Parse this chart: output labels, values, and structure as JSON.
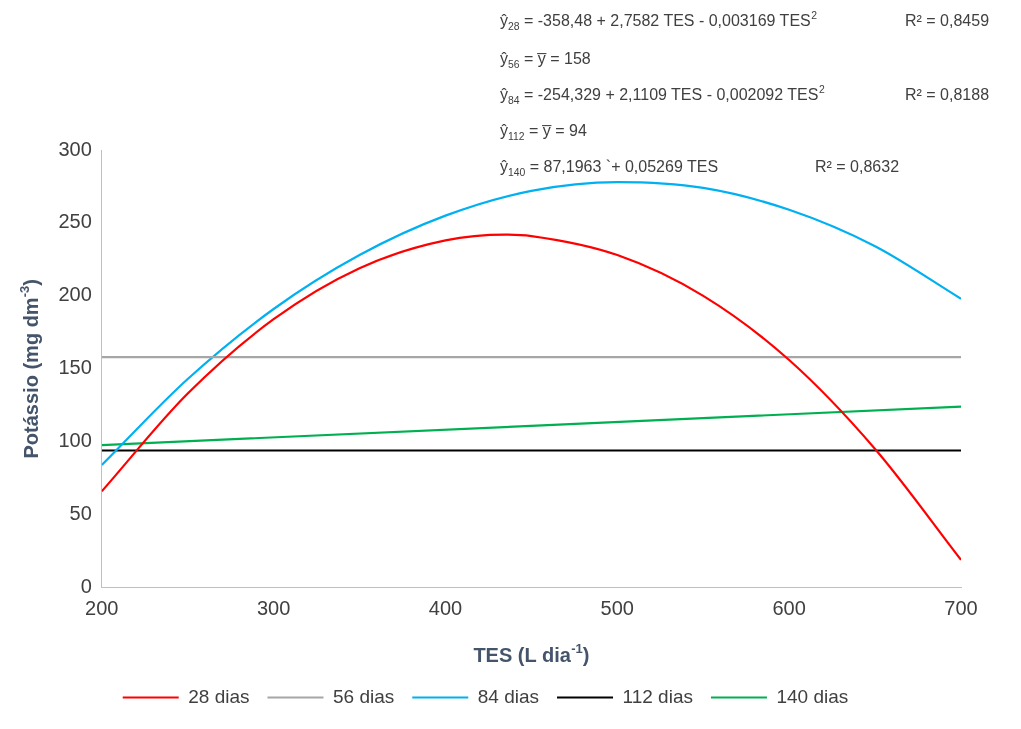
{
  "chart_data": {
    "type": "line",
    "xlabel": "TES (L dia$^{-1}$)",
    "ylabel": "Potássio (mg dm$^{-3}$)",
    "xlim": [
      200,
      700
    ],
    "xticks": [
      200,
      300,
      400,
      500,
      600,
      700
    ],
    "ylim": [
      0,
      300
    ],
    "yticks": [
      0,
      50,
      100,
      150,
      200,
      250,
      300
    ],
    "grid": false,
    "legend": "bottom",
    "marker": "none",
    "line_style": "solid",
    "series": [
      {
        "name": "28 dias",
        "color": "#ff0000",
        "x": [
          200,
          250,
          300,
          350,
          400,
          435,
          450,
          500,
          550,
          600,
          650,
          700
        ],
        "values": [
          66,
          133,
          184,
          219,
          238,
          242,
          241,
          228,
          200,
          156,
          95,
          19
        ]
      },
      {
        "name": "56 dias",
        "color": "#a6a6a6",
        "x": [
          200,
          700
        ],
        "values": [
          158,
          158
        ]
      },
      {
        "name": "84 dias",
        "color": "#00b0f0",
        "x": [
          200,
          250,
          300,
          350,
          400,
          450,
          500,
          550,
          600,
          650,
          700
        ],
        "values": [
          84,
          143,
          191,
          228,
          255,
          272,
          278,
          274,
          259,
          234,
          198
        ]
      },
      {
        "name": "112 dias",
        "color": "#000000",
        "x": [
          200,
          700
        ],
        "values": [
          94,
          94
        ]
      },
      {
        "name": "140 dias",
        "color": "#00b050",
        "x": [
          200,
          700
        ],
        "values": [
          97.7,
          124.1
        ]
      }
    ],
    "annotations": [
      "ŷ$_{28}$ = -358,48 + 2,7582 TES - 0,003169 TES$^{2}$",
      "R² = 0,8459",
      "ŷ$_{56}$ = y̅ = 158",
      "ŷ$_{84}$ = -254,329 + 2,1109 TES - 0,002092 TES$^{2}$",
      "R² = 0,8188",
      "ŷ$_{112}$ = y̅ = 94",
      "ŷ$_{140}$ = 87,1963 `+ 0,05269 TES",
      "R² = 0,8632"
    ]
  }
}
